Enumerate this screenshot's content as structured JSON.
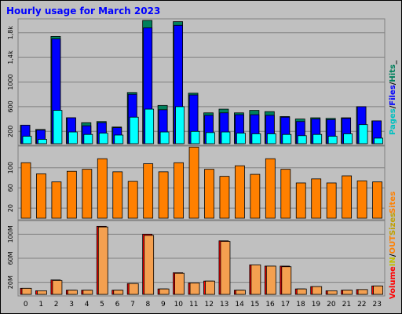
{
  "chart_data": [
    {
      "type": "bar",
      "title": "Hourly usage for March 2023",
      "categories": [
        "0",
        "1",
        "2",
        "3",
        "4",
        "5",
        "6",
        "7",
        "8",
        "9",
        "10",
        "11",
        "12",
        "13",
        "14",
        "15",
        "16",
        "17",
        "18",
        "19",
        "20",
        "21",
        "22",
        "23"
      ],
      "ylim": [
        0,
        2000
      ],
      "y_ticks": [
        "200",
        "600",
        "1000",
        "1,4k",
        "1,8k"
      ],
      "legend": [
        "Pages",
        "/",
        "Files",
        "/",
        "Hits",
        "_"
      ],
      "series": [
        {
          "name": "Hits",
          "color": "#00805c",
          "values": [
            300,
            230,
            1740,
            420,
            340,
            360,
            270,
            830,
            2000,
            620,
            1980,
            820,
            500,
            560,
            500,
            540,
            520,
            440,
            400,
            420,
            410,
            420,
            600,
            370
          ]
        },
        {
          "name": "Files",
          "color": "#0000ff",
          "values": [
            300,
            220,
            1700,
            420,
            290,
            340,
            260,
            800,
            1880,
            550,
            1920,
            790,
            460,
            500,
            470,
            470,
            460,
            430,
            360,
            400,
            390,
            410,
            600,
            370
          ]
        },
        {
          "name": "Pages",
          "color": "#00ffff",
          "values": [
            120,
            70,
            540,
            190,
            150,
            170,
            140,
            430,
            560,
            190,
            600,
            200,
            180,
            190,
            170,
            160,
            160,
            150,
            130,
            150,
            120,
            160,
            310,
            90
          ]
        }
      ]
    },
    {
      "type": "bar",
      "categories": [
        "0",
        "1",
        "2",
        "3",
        "4",
        "5",
        "6",
        "7",
        "8",
        "9",
        "10",
        "11",
        "12",
        "13",
        "14",
        "15",
        "16",
        "17",
        "18",
        "19",
        "20",
        "21",
        "22",
        "23"
      ],
      "ylim": [
        0,
        140
      ],
      "y_ticks": [
        "20",
        "60",
        "100"
      ],
      "legend": [
        "Sites"
      ],
      "series": [
        {
          "name": "Sites",
          "color": "#ff8000",
          "values": [
            110,
            88,
            72,
            93,
            97,
            118,
            92,
            73,
            108,
            92,
            110,
            141,
            97,
            83,
            104,
            87,
            118,
            97,
            70,
            78,
            70,
            84,
            74,
            72
          ]
        }
      ]
    },
    {
      "type": "bar",
      "categories": [
        "0",
        "1",
        "2",
        "3",
        "4",
        "5",
        "6",
        "7",
        "8",
        "9",
        "10",
        "11",
        "12",
        "13",
        "14",
        "15",
        "16",
        "17",
        "18",
        "19",
        "20",
        "21",
        "22",
        "23"
      ],
      "ylim": [
        0,
        120
      ],
      "y_ticks": [
        "20M",
        "60M",
        "100M"
      ],
      "legend": [
        "Volume",
        "IN",
        "/",
        "OUT",
        "Sizes"
      ],
      "series": [
        {
          "name": "Volume",
          "color": "#ff0000",
          "values": [
            10,
            6,
            24,
            7,
            7,
            113,
            7,
            18,
            100,
            9,
            36,
            19,
            22,
            89,
            7,
            49,
            47,
            47,
            9,
            13,
            6,
            7,
            8,
            14
          ]
        },
        {
          "name": "OUT",
          "color": "#f4a050",
          "values": [
            10,
            6,
            23,
            7,
            7,
            112,
            7,
            18,
            98,
            9,
            35,
            19,
            22,
            88,
            7,
            49,
            47,
            46,
            9,
            13,
            6,
            7,
            8,
            14
          ]
        }
      ]
    }
  ],
  "legend_colors": {
    "pages": "#00c0c0",
    "files": "#0000ff",
    "hits": "#00805c",
    "sep": "#000000",
    "sites": "#ff8000",
    "volume": "#ff0000",
    "in": "#c0c000",
    "out": "#ff8000",
    "sizes": "#c0a000"
  }
}
